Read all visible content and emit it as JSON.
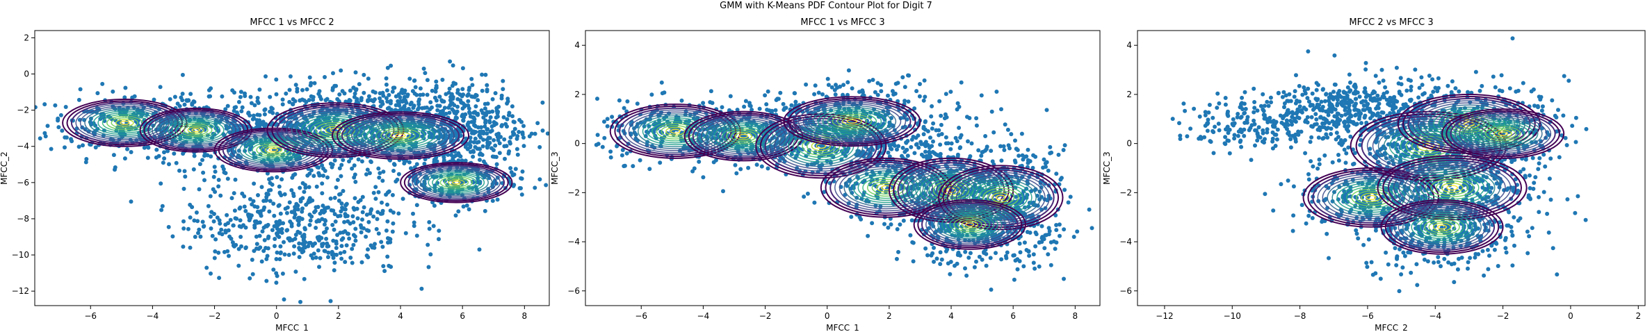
{
  "figure": {
    "suptitle": "GMM with K-Means PDF Contour Plot for Digit 7"
  },
  "chart_data": [
    {
      "type": "scatter",
      "title": "MFCC 1 vs MFCC 2",
      "xlabel": "MFCC_1",
      "ylabel": "MFCC_2",
      "xlim": [
        -7.8,
        8.8
      ],
      "ylim": [
        -12.8,
        2.4
      ],
      "xticks": [
        -6,
        -4,
        -2,
        0,
        2,
        4,
        6,
        8
      ],
      "yticks": [
        -12,
        -10,
        -8,
        -6,
        -4,
        -2,
        0,
        2
      ],
      "scatter_color": "#1f77b4",
      "components": [
        {
          "mean": [
            -4.9,
            -2.7
          ],
          "radius": [
            2.0,
            1.3
          ]
        },
        {
          "mean": [
            -2.6,
            -3.1
          ],
          "radius": [
            1.8,
            1.2
          ]
        },
        {
          "mean": [
            -0.1,
            -4.2
          ],
          "radius": [
            1.9,
            1.2
          ]
        },
        {
          "mean": [
            1.9,
            -3.1
          ],
          "radius": [
            2.2,
            1.5
          ]
        },
        {
          "mean": [
            4.0,
            -3.4
          ],
          "radius": [
            2.2,
            1.3
          ]
        },
        {
          "mean": [
            5.8,
            -6.0
          ],
          "radius": [
            1.8,
            1.1
          ]
        }
      ],
      "point_clouds": [
        {
          "center": [
            -4.8,
            -2.8
          ],
          "spread": [
            1.3,
            0.9
          ],
          "count": 240
        },
        {
          "center": [
            -2.5,
            -3.0
          ],
          "spread": [
            1.2,
            0.9
          ],
          "count": 240
        },
        {
          "center": [
            0.0,
            -3.8
          ],
          "spread": [
            1.4,
            1.0
          ],
          "count": 320
        },
        {
          "center": [
            2.2,
            -2.6
          ],
          "spread": [
            1.6,
            1.1
          ],
          "count": 420
        },
        {
          "center": [
            4.3,
            -2.8
          ],
          "spread": [
            1.5,
            1.2
          ],
          "count": 420
        },
        {
          "center": [
            6.2,
            -3.0
          ],
          "spread": [
            1.0,
            1.4
          ],
          "count": 300
        },
        {
          "center": [
            5.6,
            -5.8
          ],
          "spread": [
            1.1,
            0.8
          ],
          "count": 220
        },
        {
          "center": [
            0.6,
            -8.3
          ],
          "spread": [
            1.8,
            1.4
          ],
          "count": 500
        }
      ]
    },
    {
      "type": "scatter",
      "title": "MFCC 1 vs MFCC 3",
      "xlabel": "MFCC_1",
      "ylabel": "MFCC_3",
      "xlim": [
        -7.8,
        8.8
      ],
      "ylim": [
        -6.6,
        4.6
      ],
      "xticks": [
        -6,
        -4,
        -2,
        0,
        2,
        4,
        6,
        8
      ],
      "yticks": [
        -6,
        -4,
        -2,
        0,
        2,
        4
      ],
      "scatter_color": "#1f77b4",
      "components": [
        {
          "mean": [
            -4.9,
            0.5
          ],
          "radius": [
            2.1,
            1.1
          ]
        },
        {
          "mean": [
            -2.7,
            0.3
          ],
          "radius": [
            1.9,
            1.0
          ]
        },
        {
          "mean": [
            -0.2,
            -0.1
          ],
          "radius": [
            2.1,
            1.3
          ]
        },
        {
          "mean": [
            0.8,
            0.9
          ],
          "radius": [
            2.2,
            1.0
          ]
        },
        {
          "mean": [
            1.9,
            -1.8
          ],
          "radius": [
            2.1,
            1.2
          ]
        },
        {
          "mean": [
            4.0,
            -1.9
          ],
          "radius": [
            2.0,
            1.3
          ]
        },
        {
          "mean": [
            5.6,
            -2.2
          ],
          "radius": [
            2.0,
            1.3
          ]
        },
        {
          "mean": [
            4.6,
            -3.3
          ],
          "radius": [
            1.8,
            1.0
          ]
        }
      ],
      "point_clouds": [
        {
          "center": [
            -4.8,
            0.5
          ],
          "spread": [
            1.3,
            0.6
          ],
          "count": 260
        },
        {
          "center": [
            -2.5,
            0.4
          ],
          "spread": [
            1.2,
            0.6
          ],
          "count": 260
        },
        {
          "center": [
            0.0,
            0.2
          ],
          "spread": [
            1.5,
            0.8
          ],
          "count": 360
        },
        {
          "center": [
            1.5,
            1.0
          ],
          "spread": [
            1.6,
            0.8
          ],
          "count": 300
        },
        {
          "center": [
            2.5,
            -1.4
          ],
          "spread": [
            1.4,
            0.9
          ],
          "count": 320
        },
        {
          "center": [
            4.4,
            -2.0
          ],
          "spread": [
            1.3,
            1.0
          ],
          "count": 340
        },
        {
          "center": [
            6.0,
            -2.6
          ],
          "spread": [
            0.9,
            1.2
          ],
          "count": 320
        },
        {
          "center": [
            4.6,
            -3.5
          ],
          "spread": [
            1.1,
            0.7
          ],
          "count": 240
        }
      ]
    },
    {
      "type": "scatter",
      "title": "MFCC 2 vs MFCC 3",
      "xlabel": "MFCC_2",
      "ylabel": "MFCC_3",
      "xlim": [
        -12.8,
        2.2
      ],
      "ylim": [
        -6.6,
        4.6
      ],
      "xticks": [
        -12,
        -10,
        -8,
        -6,
        -4,
        -2,
        0,
        2
      ],
      "yticks": [
        -6,
        -4,
        -2,
        0,
        2,
        4
      ],
      "scatter_color": "#1f77b4",
      "components": [
        {
          "mean": [
            -5.9,
            -2.2
          ],
          "radius": [
            2.0,
            1.2
          ]
        },
        {
          "mean": [
            -4.2,
            -0.1
          ],
          "radius": [
            2.3,
            1.4
          ]
        },
        {
          "mean": [
            -3.0,
            0.8
          ],
          "radius": [
            2.1,
            1.2
          ]
        },
        {
          "mean": [
            -3.5,
            -1.8
          ],
          "radius": [
            2.2,
            1.3
          ]
        },
        {
          "mean": [
            -3.8,
            -3.4
          ],
          "radius": [
            1.8,
            1.1
          ]
        },
        {
          "mean": [
            -2.0,
            0.4
          ],
          "radius": [
            1.8,
            1.0
          ]
        }
      ],
      "point_clouds": [
        {
          "center": [
            -9.0,
            0.8
          ],
          "spread": [
            1.3,
            0.5
          ],
          "count": 220
        },
        {
          "center": [
            -7.0,
            1.6
          ],
          "spread": [
            1.0,
            0.5
          ],
          "count": 200
        },
        {
          "center": [
            -5.4,
            1.2
          ],
          "spread": [
            1.0,
            0.8
          ],
          "count": 220
        },
        {
          "center": [
            -4.2,
            0.0
          ],
          "spread": [
            1.3,
            1.0
          ],
          "count": 360
        },
        {
          "center": [
            -2.5,
            0.6
          ],
          "spread": [
            1.2,
            0.9
          ],
          "count": 300
        },
        {
          "center": [
            -5.8,
            -2.2
          ],
          "spread": [
            1.1,
            0.8
          ],
          "count": 260
        },
        {
          "center": [
            -3.5,
            -1.9
          ],
          "spread": [
            1.3,
            0.9
          ],
          "count": 320
        },
        {
          "center": [
            -3.8,
            -3.6
          ],
          "spread": [
            1.2,
            0.8
          ],
          "count": 300
        }
      ]
    }
  ]
}
